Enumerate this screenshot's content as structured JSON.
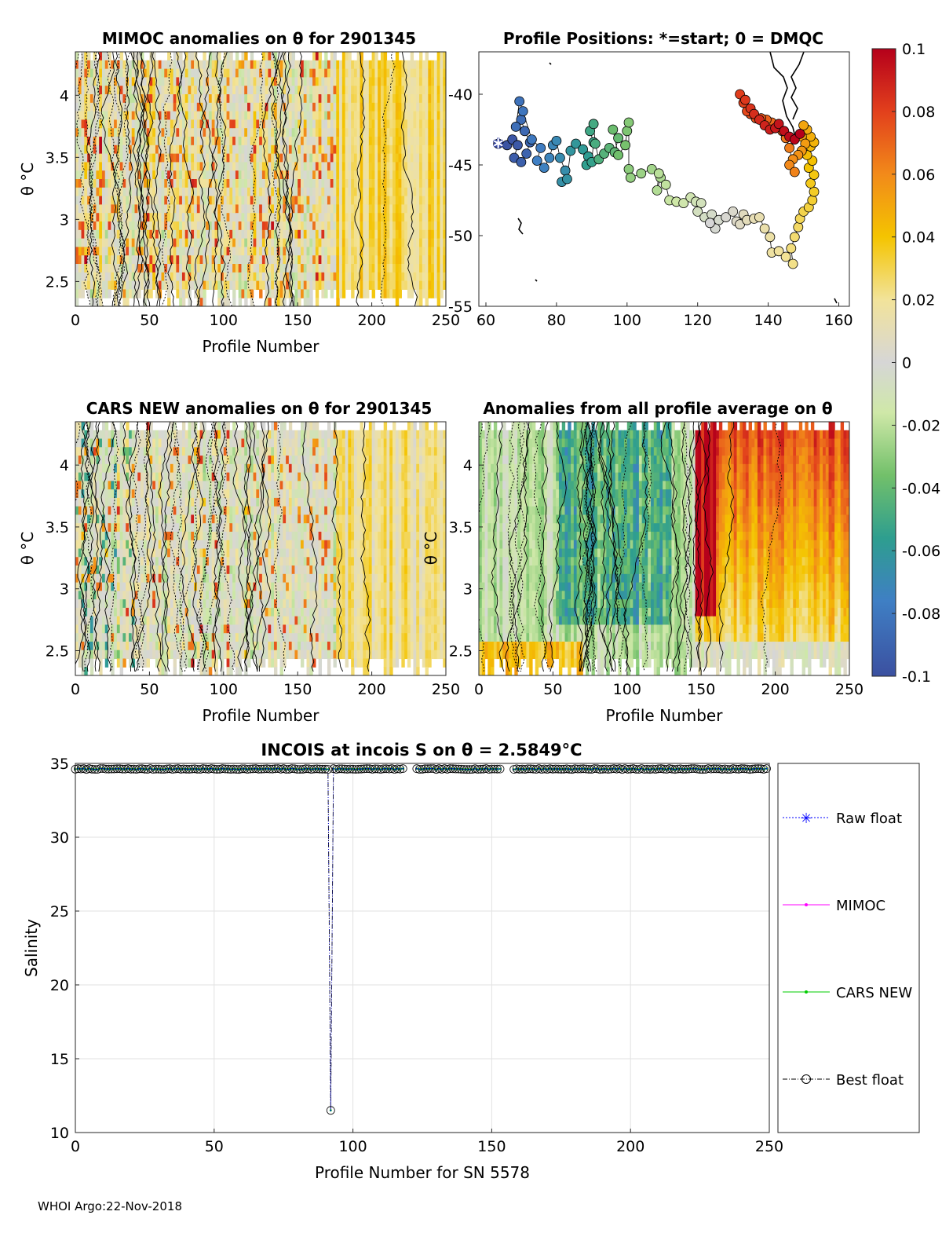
{
  "footer": "WHOI Argo:22-Nov-2018",
  "colors": {
    "raw_float": "#0000ff",
    "mimoc": "#ff00ff",
    "cars_new": "#00cc00",
    "best_float": "#000000"
  },
  "chart_data": [
    {
      "id": "mimoc",
      "type": "heatmap",
      "title": "MIMOC anomalies on θ  for 2901345",
      "xlabel": "Profile Number",
      "ylabel": "θ °C",
      "xlim": [
        0,
        250
      ],
      "ylim": [
        2.3,
        4.35
      ],
      "xticks": [
        "0",
        "50",
        "100",
        "150",
        "200",
        "250"
      ],
      "yticks": [
        "2.5",
        "3",
        "3.5",
        "4"
      ],
      "contours": true
    },
    {
      "id": "positions",
      "type": "scatter",
      "title": "Profile Positions: *=start; 0 = DMQC",
      "xlim": [
        58,
        163
      ],
      "ylim": [
        -55,
        -37
      ],
      "xticks": [
        "60",
        "80",
        "100",
        "120",
        "140",
        "160"
      ],
      "yticks": [
        "-40",
        "-45",
        "-50",
        "-55"
      ],
      "track": [
        [
          63.5,
          -43.5
        ],
        [
          66,
          -43.6
        ],
        [
          67.5,
          -43.2
        ],
        [
          69,
          -43.6
        ],
        [
          68,
          -44.5
        ],
        [
          70,
          -44.8
        ],
        [
          71.5,
          -44.2
        ],
        [
          72.5,
          -43.4
        ],
        [
          71,
          -42.6
        ],
        [
          70,
          -41.8
        ],
        [
          68.5,
          -42.3
        ],
        [
          69.5,
          -40.5
        ],
        [
          70.5,
          -41.2
        ],
        [
          73,
          -43.2
        ],
        [
          75.5,
          -43.8
        ],
        [
          74.5,
          -44.7
        ],
        [
          76.5,
          -45.2
        ],
        [
          78,
          -44.5
        ],
        [
          79,
          -43.6
        ],
        [
          80,
          -43.3
        ],
        [
          81,
          -44.5
        ],
        [
          82.5,
          -45.4
        ],
        [
          81.5,
          -46.2
        ],
        [
          83,
          -46
        ],
        [
          84,
          -44
        ],
        [
          85.5,
          -43.5
        ],
        [
          87.5,
          -43.9
        ],
        [
          89,
          -44.4
        ],
        [
          88.5,
          -45
        ],
        [
          90,
          -44.8
        ],
        [
          90.5,
          -43.4
        ],
        [
          89.5,
          -42.6
        ],
        [
          90.5,
          -42.1
        ],
        [
          91,
          -43.5
        ],
        [
          92,
          -44.6
        ],
        [
          93.5,
          -44.2
        ],
        [
          95,
          -43.8
        ],
        [
          96.5,
          -44.1
        ],
        [
          97.5,
          -43.1
        ],
        [
          96,
          -42.5
        ],
        [
          97.5,
          -44.3
        ],
        [
          99.5,
          -43.6
        ],
        [
          100,
          -42.6
        ],
        [
          100.5,
          -42
        ],
        [
          100.5,
          -45.3
        ],
        [
          101,
          -45.9
        ],
        [
          104,
          -45.6
        ],
        [
          107,
          -45.3
        ],
        [
          109.5,
          -45.9
        ],
        [
          108.5,
          -46.8
        ],
        [
          109,
          -45.6
        ],
        [
          111,
          -46.4
        ],
        [
          112,
          -47.5
        ],
        [
          114,
          -47.6
        ],
        [
          116,
          -47.7
        ],
        [
          118,
          -47.3
        ],
        [
          119.5,
          -47.6
        ],
        [
          121,
          -47.7
        ],
        [
          120,
          -48.3
        ],
        [
          122,
          -48.7
        ],
        [
          124,
          -48.5
        ],
        [
          126,
          -48.9
        ],
        [
          125,
          -49.5
        ],
        [
          123.5,
          -49.1
        ],
        [
          128,
          -48.7
        ],
        [
          130,
          -48.3
        ],
        [
          131,
          -49
        ],
        [
          132,
          -49.2
        ],
        [
          133,
          -48.5
        ],
        [
          134,
          -48.9
        ],
        [
          136,
          -48.8
        ],
        [
          137.5,
          -48.7
        ],
        [
          139,
          -49.5
        ],
        [
          140.5,
          -50.1
        ],
        [
          141,
          -51.2
        ],
        [
          143,
          -51.1
        ],
        [
          145,
          -51.5
        ],
        [
          147,
          -52
        ],
        [
          146.5,
          -50.9
        ],
        [
          147.5,
          -50.1
        ],
        [
          148.5,
          -49.4
        ],
        [
          149,
          -48.8
        ],
        [
          150,
          -48.3
        ],
        [
          151.5,
          -48
        ],
        [
          152.5,
          -47.5
        ],
        [
          153,
          -46.9
        ],
        [
          152,
          -46.3
        ],
        [
          153,
          -45.7
        ],
        [
          151.5,
          -45.2
        ],
        [
          152.5,
          -44.7
        ],
        [
          151,
          -44.3
        ],
        [
          152,
          -43.7
        ],
        [
          153,
          -43.4
        ],
        [
          152,
          -43
        ],
        [
          151,
          -42.5
        ],
        [
          150,
          -42.2
        ],
        [
          149.5,
          -43
        ],
        [
          150.5,
          -43.5
        ],
        [
          149.5,
          -44
        ],
        [
          148.5,
          -44.3
        ],
        [
          147,
          -44.6
        ],
        [
          146,
          -45
        ],
        [
          147.5,
          -45.5
        ],
        [
          146,
          -43.8
        ],
        [
          145,
          -43.1
        ],
        [
          144,
          -42.6
        ],
        [
          142.5,
          -42.3
        ],
        [
          141,
          -42
        ],
        [
          139.5,
          -41.8
        ],
        [
          138,
          -41.7
        ],
        [
          136.5,
          -41.7
        ],
        [
          135,
          -41.4
        ],
        [
          134,
          -41.2
        ],
        [
          133,
          -40.6
        ],
        [
          132,
          -40
        ],
        [
          133.5,
          -40.4
        ],
        [
          135,
          -41
        ],
        [
          136,
          -41.4
        ],
        [
          137.5,
          -41.8
        ],
        [
          139,
          -42.2
        ],
        [
          140.5,
          -42.5
        ],
        [
          142,
          -42.4
        ],
        [
          143,
          -42.1
        ],
        [
          144.5,
          -42.6
        ],
        [
          146,
          -43
        ],
        [
          147.5,
          -43.2
        ],
        [
          149,
          -42.8
        ]
      ],
      "start_marker": "*"
    },
    {
      "id": "cars",
      "type": "heatmap",
      "title": "CARS NEW anomalies on θ for 2901345",
      "xlabel": "Profile Number",
      "ylabel": "θ °C",
      "xlim": [
        0,
        250
      ],
      "ylim": [
        2.3,
        4.35
      ],
      "xticks": [
        "0",
        "50",
        "100",
        "150",
        "200",
        "250"
      ],
      "yticks": [
        "2.5",
        "3",
        "3.5",
        "4"
      ],
      "contours": true
    },
    {
      "id": "average",
      "type": "heatmap",
      "title": "Anomalies from all profile average on θ",
      "xlabel": "Profile Number",
      "ylabel": "θ °C",
      "xlim": [
        0,
        250
      ],
      "ylim": [
        2.3,
        4.35
      ],
      "xticks": [
        "0",
        "50",
        "100",
        "150",
        "200",
        "250"
      ],
      "yticks": [
        "2.5",
        "3",
        "3.5",
        "4"
      ],
      "contours": true
    },
    {
      "id": "colorbar",
      "type": "colorbar",
      "range": [
        -0.1,
        0.1
      ],
      "ticks": [
        "0.1",
        "0.08",
        "0.06",
        "0.04",
        "0.02",
        "0",
        "-0.02",
        "-0.04",
        "-0.06",
        "-0.08",
        "-0.1"
      ]
    },
    {
      "id": "salinity",
      "type": "line",
      "title": "INCOIS at incois S on θ = 2.5849°C",
      "xlabel": "Profile Number for SN 5578",
      "ylabel": "Salinity",
      "xlim": [
        0,
        250
      ],
      "ylim": [
        10,
        35
      ],
      "xticks": [
        "0",
        "50",
        "100",
        "150",
        "200",
        "250"
      ],
      "yticks": [
        "10",
        "15",
        "20",
        "25",
        "30",
        "35"
      ],
      "typical_salinity": 34.62,
      "outlier": {
        "x": 92,
        "y": 11.5
      },
      "gaps": [
        [
          119,
          122
        ],
        [
          154,
          157
        ]
      ],
      "legend": [
        "Raw float",
        "MIMOC",
        "CARS NEW",
        "Best float"
      ]
    }
  ]
}
